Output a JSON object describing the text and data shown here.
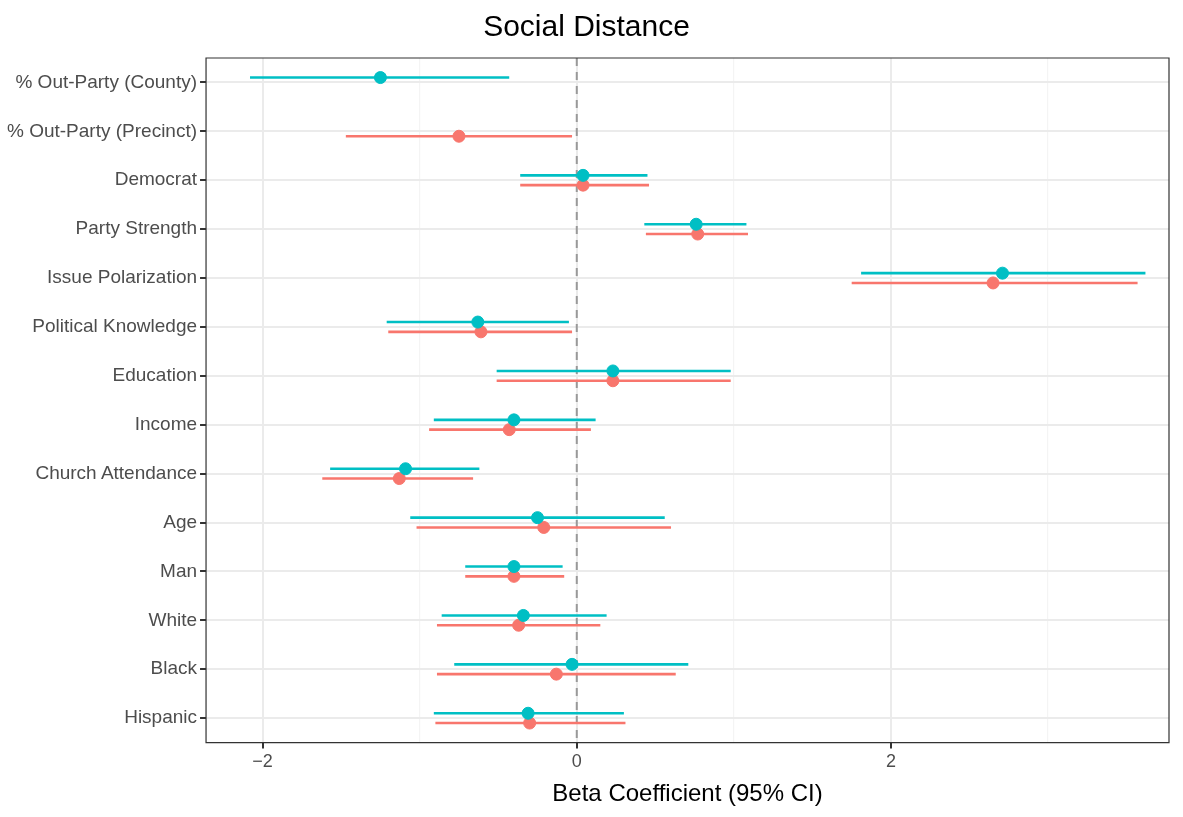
{
  "chart_data": {
    "type": "scatter",
    "orientation": "horizontal",
    "title": "Social Distance",
    "xlabel": "Beta Coefficient (95% CI)",
    "categories": [
      "% Out-Party (County)",
      "% Out-Party (Precinct)",
      "Democrat",
      "Party Strength",
      "Issue Polarization",
      "Political Knowledge",
      "Education",
      "Income",
      "Church Attendance",
      "Age",
      "Man",
      "White",
      "Black",
      "Hispanic"
    ],
    "series": [
      {
        "color": "#00bfc4",
        "values": [
          -1.25,
          null,
          0.04,
          0.76,
          2.71,
          -0.63,
          0.23,
          -0.4,
          -1.09,
          -0.25,
          -0.4,
          -0.34,
          -0.03,
          -0.31
        ],
        "errors": [
          [
            -2.08,
            -0.43
          ],
          null,
          [
            -0.36,
            0.45
          ],
          [
            0.43,
            1.08
          ],
          [
            1.81,
            3.62
          ],
          [
            -1.21,
            -0.05
          ],
          [
            -0.51,
            0.98
          ],
          [
            -0.91,
            0.12
          ],
          [
            -1.57,
            -0.62
          ],
          [
            -1.06,
            0.56
          ],
          [
            -0.71,
            -0.09
          ],
          [
            -0.86,
            0.19
          ],
          [
            -0.78,
            0.71
          ],
          [
            -0.91,
            0.3
          ]
        ]
      },
      {
        "color": "#f8766d",
        "values": [
          null,
          -0.75,
          0.04,
          0.77,
          2.65,
          -0.61,
          0.23,
          -0.43,
          -1.13,
          -0.21,
          -0.4,
          -0.37,
          -0.13,
          -0.3
        ],
        "errors": [
          null,
          [
            -1.47,
            -0.03
          ],
          [
            -0.36,
            0.46
          ],
          [
            0.44,
            1.09
          ],
          [
            1.75,
            3.57
          ],
          [
            -1.2,
            -0.03
          ],
          [
            -0.51,
            0.98
          ],
          [
            -0.94,
            0.09
          ],
          [
            -1.62,
            -0.66
          ],
          [
            -1.02,
            0.6
          ],
          [
            -0.71,
            -0.08
          ],
          [
            -0.89,
            0.15
          ],
          [
            -0.89,
            0.63
          ],
          [
            -0.9,
            0.31
          ]
        ]
      }
    ],
    "xlim": [
      -2.36,
      3.77
    ],
    "xticks": [
      -2,
      {
        "value": -1,
        "label": null
      },
      0,
      {
        "value": 1,
        "label": null
      },
      2,
      {
        "value": 3,
        "label": null
      }
    ],
    "ref_lines": [
      {
        "axis": "x",
        "value": 0,
        "color": "#999999",
        "line_style": "dashed"
      }
    ],
    "grid": true,
    "legend": false,
    "marker": "circle"
  }
}
